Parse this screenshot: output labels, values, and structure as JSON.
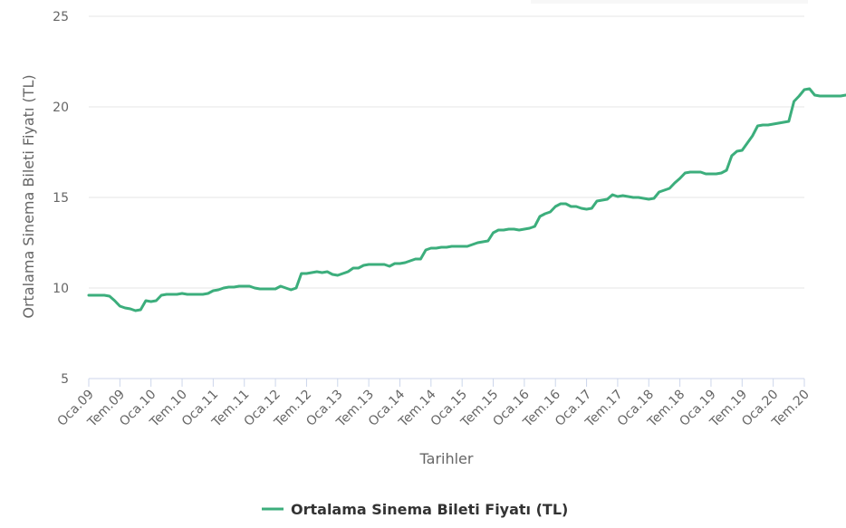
{
  "colors": {
    "series": "#3cae7c",
    "grid": "#e6e6e6",
    "axis_line": "#ccd6eb",
    "text": "#666666",
    "legend_text": "#333333"
  },
  "chart_data": {
    "type": "line",
    "xlabel": "Tarihler",
    "ylabel": "Ortalama Sinema Bileti Fiyatı (TL)",
    "ylim": [
      5,
      25
    ],
    "yticks": [
      5,
      10,
      15,
      20,
      25
    ],
    "grid": true,
    "legend_position": "bottom-center",
    "x_tick_labels": [
      "Oca.09",
      "Tem.09",
      "Oca.10",
      "Tem.10",
      "Oca.11",
      "Tem.11",
      "Oca.12",
      "Tem.12",
      "Oca.13",
      "Tem.13",
      "Oca.14",
      "Tem.14",
      "Oca.15",
      "Tem.15",
      "Oca.16",
      "Tem.16",
      "Oca.17",
      "Tem.17",
      "Oca.18",
      "Tem.18",
      "Oca.19",
      "Tem.19",
      "Oca.20",
      "Tem.20"
    ],
    "x_start": "2009-01",
    "x_end": "2020-07",
    "series": [
      {
        "name": "Ortalama Sinema Bileti Fiyatı (TL)",
        "values": [
          9.6,
          9.6,
          9.6,
          9.6,
          9.55,
          9.3,
          9.0,
          8.9,
          8.85,
          8.75,
          8.8,
          9.3,
          9.25,
          9.3,
          9.6,
          9.65,
          9.65,
          9.65,
          9.7,
          9.65,
          9.65,
          9.65,
          9.65,
          9.7,
          9.85,
          9.9,
          10.0,
          10.05,
          10.05,
          10.1,
          10.1,
          10.1,
          10.0,
          9.95,
          9.95,
          9.95,
          9.95,
          10.1,
          10.0,
          9.9,
          10.0,
          10.8,
          10.8,
          10.85,
          10.9,
          10.85,
          10.9,
          10.75,
          10.7,
          10.8,
          10.9,
          11.1,
          11.1,
          11.25,
          11.3,
          11.3,
          11.3,
          11.3,
          11.2,
          11.35,
          11.35,
          11.4,
          11.5,
          11.6,
          11.6,
          12.1,
          12.2,
          12.2,
          12.25,
          12.25,
          12.3,
          12.3,
          12.3,
          12.3,
          12.4,
          12.5,
          12.55,
          12.6,
          13.05,
          13.2,
          13.2,
          13.25,
          13.25,
          13.2,
          13.25,
          13.3,
          13.4,
          13.95,
          14.1,
          14.2,
          14.5,
          14.65,
          14.65,
          14.5,
          14.5,
          14.4,
          14.35,
          14.4,
          14.8,
          14.85,
          14.9,
          15.15,
          15.05,
          15.1,
          15.05,
          15.0,
          15.0,
          14.95,
          14.9,
          14.95,
          15.3,
          15.4,
          15.5,
          15.8,
          16.05,
          16.35,
          16.4,
          16.4,
          16.4,
          16.3,
          16.3,
          16.3,
          16.35,
          16.5,
          17.3,
          17.55,
          17.6,
          18.0,
          18.4,
          18.95,
          19.0,
          19.0,
          19.05,
          19.1,
          19.15,
          19.2,
          20.3,
          20.6,
          20.95,
          21.0,
          20.65,
          20.6,
          20.6,
          20.6,
          20.6,
          20.6,
          20.65
        ]
      }
    ]
  }
}
